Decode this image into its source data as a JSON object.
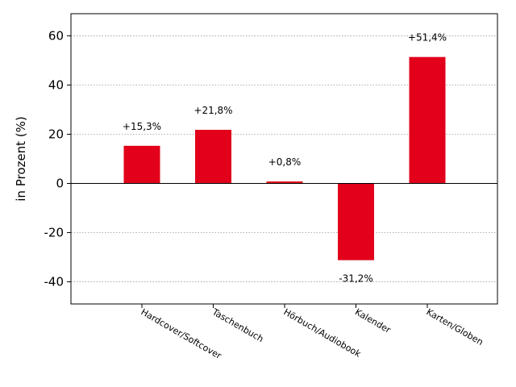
{
  "chart_data": {
    "type": "bar",
    "categories": [
      "Hardcover/Softcover",
      "Taschenbuch",
      "Hörbuch/Audiobook",
      "Kalender",
      "Karten/Globen"
    ],
    "values": [
      15.3,
      21.8,
      0.8,
      -31.2,
      51.4
    ],
    "data_labels": [
      "+15,3%",
      "+21,8%",
      "+0,8%",
      "-31,2%",
      "+51,4%"
    ],
    "title": "",
    "xlabel": "",
    "ylabel": "in Prozent (%)",
    "ylim": [
      -49,
      69
    ],
    "yticks": [
      -40,
      -20,
      0,
      20,
      40,
      60
    ],
    "ytick_labels": [
      "-40",
      "-20",
      "0",
      "20",
      "40",
      "60"
    ],
    "bar_color": "#e2001a",
    "grid": "horizontal dotted",
    "legend": "none"
  }
}
